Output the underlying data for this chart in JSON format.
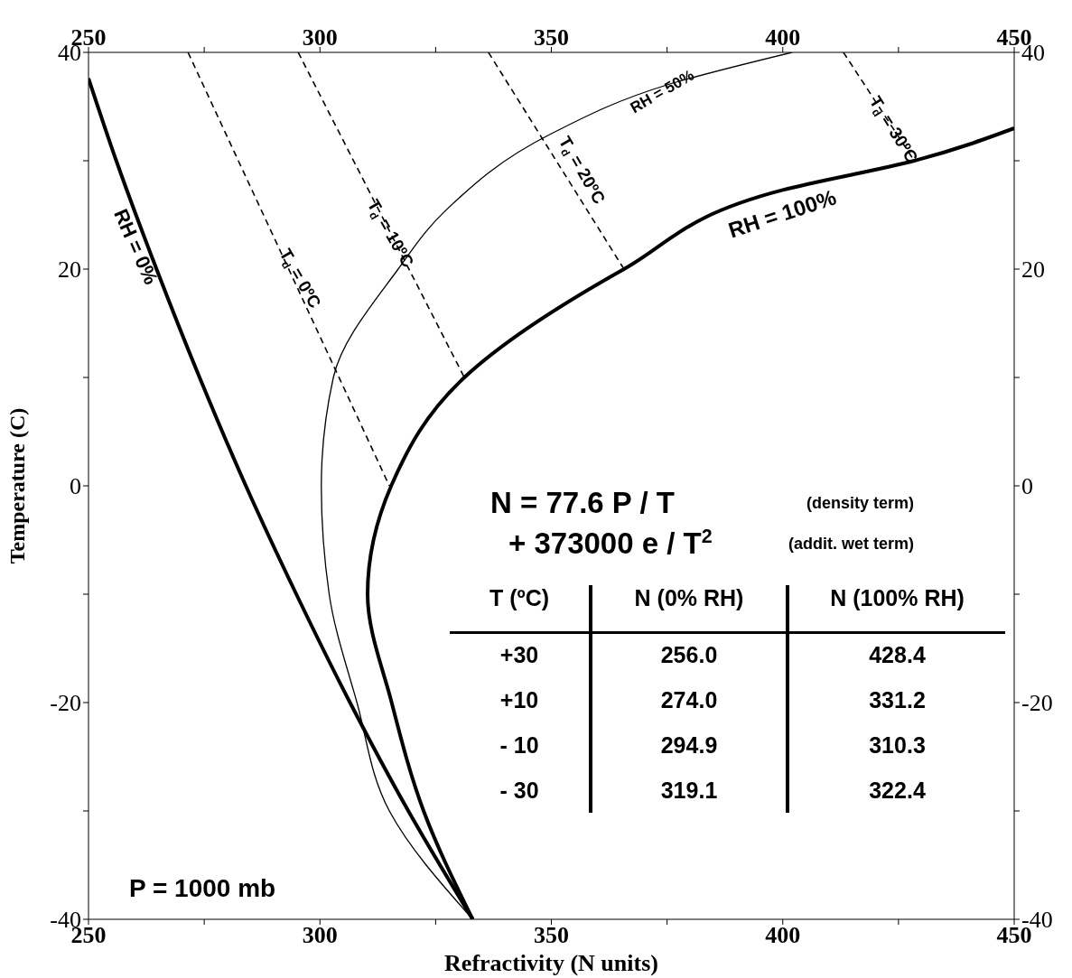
{
  "chart_data": {
    "type": "line",
    "xlabel": "Refractivity (N units)",
    "ylabel": "Temperature (C)",
    "xlim": [
      250,
      450
    ],
    "xticks": [
      250,
      {
        "value": 275,
        "label": null
      },
      300,
      {
        "value": 325,
        "label": null
      },
      350,
      {
        "value": 375,
        "label": null
      },
      400,
      {
        "value": 425,
        "label": null
      },
      450
    ],
    "x2lim": [
      250,
      450
    ],
    "x2ticks": [
      250,
      {
        "value": 275,
        "label": null
      },
      300,
      {
        "value": 325,
        "label": null
      },
      350,
      {
        "value": 375,
        "label": null
      },
      400,
      {
        "value": 425,
        "label": null
      },
      450
    ],
    "ylim": [
      -40,
      40
    ],
    "yticks": [
      -40,
      {
        "value": -30,
        "label": null
      },
      -20,
      {
        "value": -10,
        "label": null
      },
      0,
      {
        "value": 10,
        "label": null
      },
      20,
      {
        "value": 30,
        "label": null
      },
      40
    ],
    "y2lim": [
      -40,
      40
    ],
    "y2ticks": [
      -40,
      {
        "value": -30,
        "label": null
      },
      -20,
      {
        "value": -10,
        "label": null
      },
      0,
      {
        "value": 10,
        "label": null
      },
      20,
      {
        "value": 30,
        "label": null
      },
      40
    ],
    "marker": "none",
    "series": [
      {
        "color": "#000000",
        "line_style": "solid",
        "x": [
          250,
          256,
          264.7,
          274,
          284,
          294.9,
          306.5,
          319.1,
          333
        ],
        "values": [
          37.6,
          30,
          20,
          10,
          0,
          -10,
          -20,
          -30,
          -40
        ]
      },
      {
        "color": "#000000",
        "line_style": "solid",
        "x": [
          333,
          315,
          308,
          302,
          300.3,
          302.9,
          316.9,
          326.9,
          350,
          375,
          402
        ],
        "values": [
          -40,
          -30,
          -20,
          -10,
          0,
          10,
          20,
          25.3,
          32.5,
          37,
          40
        ]
      },
      {
        "color": "#000000",
        "line_style": "solid",
        "x": [
          333,
          322.4,
          315.5,
          310.3,
          315.4,
          331.2,
          365.7,
          400,
          428.4,
          450
        ],
        "values": [
          -40,
          -30,
          -20,
          -10,
          0,
          10,
          20,
          27.3,
          30,
          33
        ]
      },
      {
        "color": "#000000",
        "line_style": "dashed",
        "x": [
          271.5,
          315
        ],
        "values": [
          40,
          0
        ]
      },
      {
        "color": "#000000",
        "line_style": "dashed",
        "x": [
          295.3,
          331.2
        ],
        "values": [
          40,
          10
        ]
      },
      {
        "color": "#000000",
        "line_style": "dashed",
        "x": [
          336.4,
          365.7
        ],
        "values": [
          40,
          20
        ]
      },
      {
        "color": "#000000",
        "line_style": "dashed",
        "x": [
          413.1,
          428.4
        ],
        "values": [
          40,
          30
        ]
      }
    ],
    "annotations": [
      "RH = 0%",
      "T$_{d}$ = 0ºC",
      "T$_{d}$ = 10ºC",
      "T$_{d}$ = 20ºC",
      "T$_{d}$ = 30ºC",
      "RH = 50%",
      "RH = 100%",
      "N = 77.6 P / T",
      "(density term)",
      "+ 373000 e / T$^{2}$",
      "(addit. wet term)",
      "P = 1000 mb",
      "T (ºC)",
      "N (0% RH)",
      "N (100% RH)",
      "+30",
      "256.0",
      "428.4",
      "+10",
      "274.0",
      "331.2",
      "- 10",
      "294.9",
      "310.3",
      "- 30",
      "319.1",
      "322.4"
    ]
  }
}
